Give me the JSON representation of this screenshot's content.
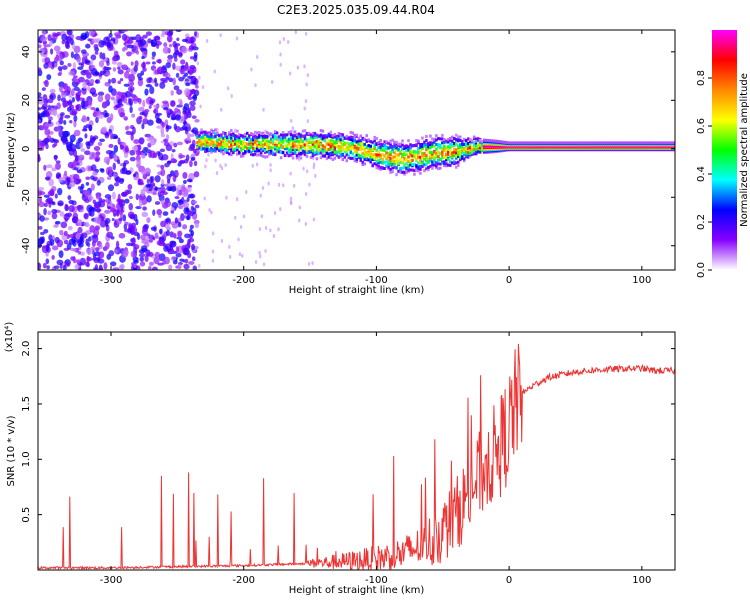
{
  "title": "C2E3.2025.035.09.44.R04",
  "chart_data": [
    {
      "type": "heatmap",
      "xlabel": "Height of straight line (km)",
      "ylabel": "Frequency (Hz)",
      "xlim": [
        -355,
        125
      ],
      "ylim": [
        -50,
        49
      ],
      "x_ticks": [
        -300,
        -200,
        -100,
        0,
        100
      ],
      "y_ticks": [
        -40,
        -20,
        0,
        20,
        40
      ],
      "colorbar": {
        "label": "Normalized spectral amplitude",
        "range": [
          0,
          1
        ],
        "ticks": [
          "0.0",
          "0.2",
          "0.4",
          "0.6",
          "0.8"
        ],
        "colors": [
          "#ffffff",
          "#8800ff",
          "#0000ff",
          "#00ffff",
          "#00ff00",
          "#ffff00",
          "#ff8800",
          "#ff0000",
          "#ff00ff"
        ]
      },
      "noise_region": {
        "x_range": [
          -355,
          -235
        ],
        "level": 0.15
      },
      "ridge": [
        {
          "x": -235,
          "f": 3,
          "width": 6
        },
        {
          "x": -200,
          "f": 2,
          "width": 6
        },
        {
          "x": -150,
          "f": 2,
          "width": 7
        },
        {
          "x": -120,
          "f": 1,
          "width": 7
        },
        {
          "x": -100,
          "f": -2,
          "width": 8
        },
        {
          "x": -80,
          "f": -4,
          "width": 9
        },
        {
          "x": -60,
          "f": -2,
          "width": 9
        },
        {
          "x": -40,
          "f": -1,
          "width": 8
        },
        {
          "x": -25,
          "f": 1,
          "width": 4
        },
        {
          "x": -10,
          "f": 1,
          "width": 3
        },
        {
          "x": 0,
          "f": 1,
          "width": 2
        },
        {
          "x": 50,
          "f": 1,
          "width": 2
        },
        {
          "x": 100,
          "f": 1,
          "width": 2
        },
        {
          "x": 125,
          "f": 1,
          "width": 2
        }
      ]
    },
    {
      "type": "line",
      "xlabel": "Height of straight line (km)",
      "ylabel": "SNR (10 * v/v)",
      "y_multiplier": "(x10⁴)",
      "xlim": [
        -355,
        125
      ],
      "ylim": [
        0,
        2.15
      ],
      "x_ticks": [
        -300,
        -200,
        -100,
        0,
        100
      ],
      "y_ticks": [
        0.5,
        1.0,
        1.5,
        2.0
      ],
      "series": [
        {
          "color": "#ee3333",
          "x": [
            -355,
            -300,
            -250,
            -200,
            -150,
            -120,
            -100,
            -80,
            -60,
            -50,
            -40,
            -30,
            -20,
            -15,
            -10,
            -5,
            0,
            5,
            10,
            20,
            30,
            50,
            70,
            90,
            100,
            110,
            125
          ],
          "y": [
            0.02,
            0.02,
            0.03,
            0.04,
            0.06,
            0.08,
            0.1,
            0.15,
            0.25,
            0.35,
            0.5,
            0.7,
            0.9,
            1.0,
            1.05,
            1.15,
            1.3,
            1.5,
            1.6,
            1.68,
            1.74,
            1.79,
            1.81,
            1.82,
            1.82,
            1.8,
            1.8
          ]
        }
      ]
    }
  ]
}
